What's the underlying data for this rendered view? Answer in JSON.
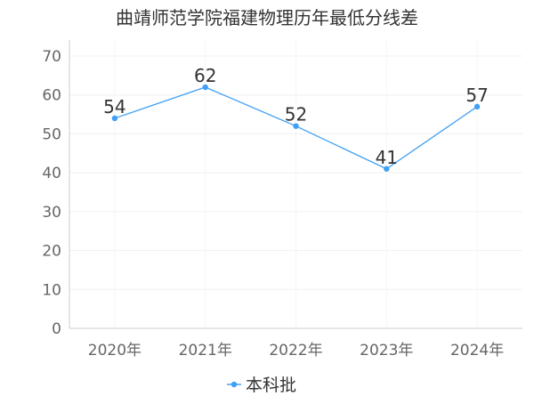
{
  "chart_data": {
    "type": "line",
    "title": "曲靖师范学院福建物理历年最低分线差",
    "categories": [
      "2020年",
      "2021年",
      "2022年",
      "2023年",
      "2024年"
    ],
    "series": [
      {
        "name": "本科批",
        "values": [
          54,
          62,
          52,
          41,
          57
        ],
        "color": "#3fa0f5"
      }
    ],
    "ylim": [
      0,
      70
    ],
    "yticks": [
      0,
      10,
      20,
      30,
      40,
      50,
      60,
      70
    ],
    "grid": true,
    "legend": "bottom-center",
    "xlabel": "",
    "ylabel": ""
  }
}
